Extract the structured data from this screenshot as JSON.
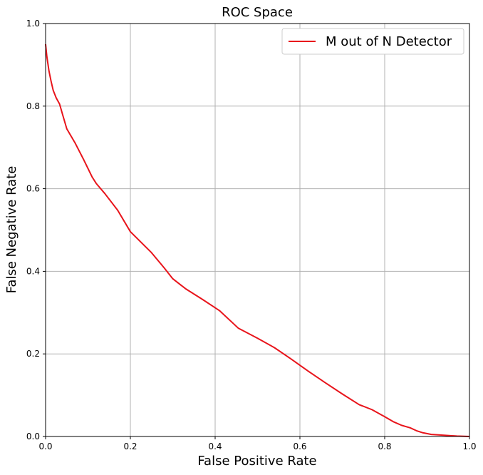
{
  "chart_data": {
    "type": "line",
    "title": "ROC Space",
    "xlabel": "False Positive Rate",
    "ylabel": "False Negative Rate",
    "xlim": [
      0,
      1
    ],
    "ylim": [
      0,
      1
    ],
    "xticks": [
      "0.0",
      "0.2",
      "0.4",
      "0.6",
      "0.8",
      "1.0"
    ],
    "yticks": [
      "0.0",
      "0.2",
      "0.4",
      "0.6",
      "0.8",
      "1.0"
    ],
    "grid": true,
    "legend_position": "top-right",
    "series": [
      {
        "name": "M out of N Detector",
        "color": "#e8141b",
        "x": [
          0.0,
          0.003,
          0.008,
          0.013,
          0.018,
          0.025,
          0.033,
          0.04,
          0.05,
          0.07,
          0.09,
          0.11,
          0.12,
          0.14,
          0.17,
          0.2,
          0.25,
          0.28,
          0.3,
          0.33,
          0.37,
          0.41,
          0.455,
          0.5,
          0.54,
          0.58,
          0.62,
          0.66,
          0.7,
          0.74,
          0.77,
          0.8,
          0.82,
          0.84,
          0.86,
          0.875,
          0.89,
          0.91,
          0.94,
          0.97,
          1.0
        ],
        "y": [
          0.95,
          0.92,
          0.885,
          0.86,
          0.838,
          0.82,
          0.805,
          0.78,
          0.745,
          0.71,
          0.67,
          0.628,
          0.612,
          0.588,
          0.548,
          0.496,
          0.445,
          0.408,
          0.382,
          0.358,
          0.332,
          0.305,
          0.262,
          0.238,
          0.215,
          0.187,
          0.158,
          0.13,
          0.103,
          0.077,
          0.065,
          0.048,
          0.036,
          0.027,
          0.021,
          0.014,
          0.009,
          0.005,
          0.003,
          0.001,
          0.0
        ]
      }
    ]
  }
}
